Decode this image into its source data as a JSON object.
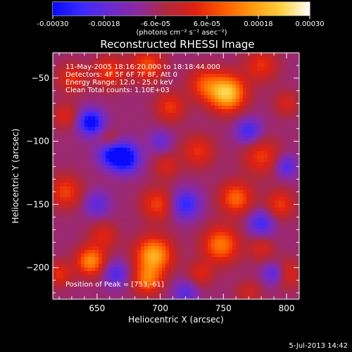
{
  "colorbar": {
    "tick_labels": [
      "-0.00030",
      "-0.00018",
      "-6.0e-05",
      "6.0e-05",
      "0.00018",
      "0.00030"
    ],
    "tick_values": [
      -0.0003,
      -0.00018,
      -6e-05,
      6e-05,
      0.00018,
      0.0003
    ],
    "range": [
      -0.0003,
      0.0003
    ],
    "units_text": "(photons cm⁻² s⁻¹ asec⁻²)",
    "colors": [
      "#0a0aff",
      "#3a2aff",
      "#6a2ad0",
      "#8a2aa0",
      "#b0283c",
      "#e02010",
      "#ff5a00",
      "#ff9a10",
      "#ffd040",
      "#ffffff"
    ]
  },
  "footer": {
    "date": "5-Jul-2013 14:42"
  },
  "chart_data": {
    "type": "heatmap",
    "title": "Reconstructed RHESSI Image",
    "xlabel": "Heliocentric X (arcsec)",
    "ylabel": "Heliocentric Y (arcsec)",
    "xlim": [
      615,
      810
    ],
    "ylim": [
      -225,
      -30
    ],
    "x_ticks": [
      650,
      700,
      750,
      800
    ],
    "y_ticks": [
      -50,
      -100,
      -150,
      -200
    ],
    "x_tick_labels": [
      "650",
      "700",
      "750",
      "800"
    ],
    "y_tick_labels": [
      "−50",
      "−100",
      "−150",
      "−200"
    ],
    "info_lines": [
      "11-May-2005 18:16:20.000 to 18:18:44.000",
      "Detectors: 4F 5F 6F 7F 8F, Att 0",
      "Energy Range: 12.0 - 25.0 keV",
      "Clean    Total counts: 1.10E+03"
    ],
    "peak_text": "Position of Peak = [753,-61]",
    "peak_position": [
      753,
      -61
    ],
    "blobs": [
      {
        "x": 753,
        "y": -62,
        "v": 0.0003,
        "s": 10
      },
      {
        "x": 735,
        "y": -55,
        "v": 0.00014,
        "s": 9
      },
      {
        "x": 708,
        "y": -73,
        "v": 0.00013,
        "s": 8
      },
      {
        "x": 690,
        "y": -40,
        "v": 0.00015,
        "s": 9
      },
      {
        "x": 660,
        "y": -45,
        "v": 0.00013,
        "s": 9
      },
      {
        "x": 630,
        "y": -50,
        "v": 0.00012,
        "s": 8
      },
      {
        "x": 625,
        "y": -80,
        "v": 0.0001,
        "s": 7
      },
      {
        "x": 780,
        "y": -40,
        "v": 0.00012,
        "s": 9
      },
      {
        "x": 800,
        "y": -70,
        "v": 9e-05,
        "s": 7
      },
      {
        "x": 780,
        "y": -112,
        "v": 0.00013,
        "s": 10
      },
      {
        "x": 730,
        "y": -108,
        "v": 0.00012,
        "s": 9
      },
      {
        "x": 705,
        "y": -120,
        "v": 9e-05,
        "s": 7
      },
      {
        "x": 660,
        "y": -100,
        "v": 8e-05,
        "s": 6
      },
      {
        "x": 760,
        "y": -145,
        "v": 0.00018,
        "s": 9
      },
      {
        "x": 795,
        "y": -150,
        "v": 0.00013,
        "s": 8
      },
      {
        "x": 698,
        "y": -150,
        "v": 0.00014,
        "s": 9
      },
      {
        "x": 625,
        "y": -140,
        "v": 0.00014,
        "s": 9
      },
      {
        "x": 655,
        "y": -175,
        "v": 0.0001,
        "s": 8
      },
      {
        "x": 695,
        "y": -190,
        "v": 0.00026,
        "s": 10
      },
      {
        "x": 690,
        "y": -210,
        "v": 0.00018,
        "s": 8
      },
      {
        "x": 645,
        "y": -195,
        "v": 0.00022,
        "s": 8
      },
      {
        "x": 620,
        "y": -205,
        "v": 0.00012,
        "s": 7
      },
      {
        "x": 748,
        "y": -182,
        "v": 0.0002,
        "s": 10
      },
      {
        "x": 732,
        "y": -205,
        "v": 0.0001,
        "s": 7
      },
      {
        "x": 780,
        "y": -185,
        "v": 9e-05,
        "s": 7
      },
      {
        "x": 800,
        "y": -205,
        "v": 0.00011,
        "s": 8
      },
      {
        "x": 770,
        "y": -220,
        "v": 8e-05,
        "s": 7
      },
      {
        "x": 645,
        "y": -85,
        "v": -0.00026,
        "s": 7
      },
      {
        "x": 660,
        "y": -110,
        "v": -0.00018,
        "s": 7
      },
      {
        "x": 672,
        "y": -113,
        "v": -0.00028,
        "s": 8
      },
      {
        "x": 720,
        "y": -150,
        "v": -0.00018,
        "s": 8
      },
      {
        "x": 770,
        "y": -92,
        "v": -0.00016,
        "s": 7
      },
      {
        "x": 800,
        "y": -120,
        "v": -0.00014,
        "s": 6
      },
      {
        "x": 780,
        "y": -165,
        "v": -0.00016,
        "s": 7
      },
      {
        "x": 650,
        "y": -150,
        "v": -0.00012,
        "s": 7
      },
      {
        "x": 665,
        "y": -205,
        "v": -0.00014,
        "s": 7
      },
      {
        "x": 790,
        "y": -205,
        "v": -0.00016,
        "s": 6
      },
      {
        "x": 720,
        "y": -220,
        "v": -0.00012,
        "s": 7
      },
      {
        "x": 700,
        "y": -100,
        "v": -0.0001,
        "s": 6
      }
    ]
  }
}
